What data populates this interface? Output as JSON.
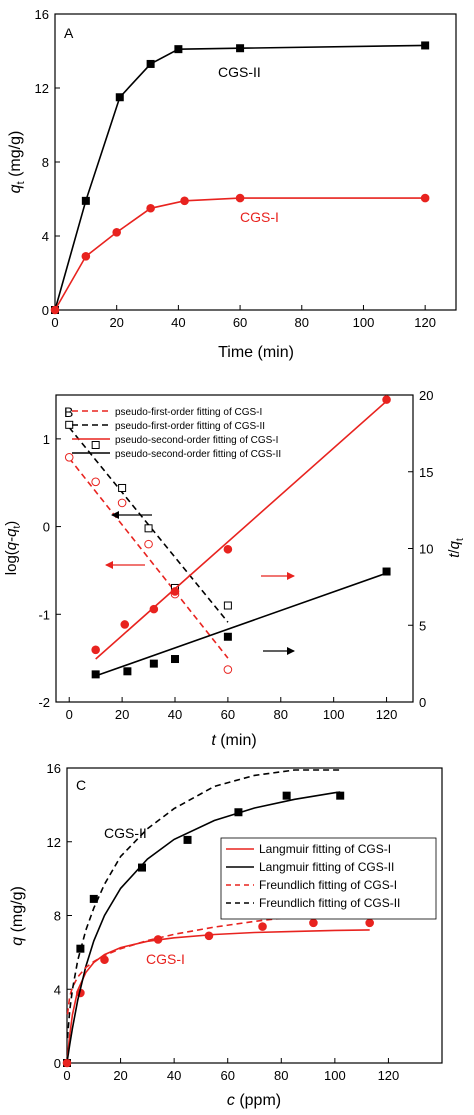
{
  "chart_data": [
    {
      "type": "line",
      "panel_label": "A",
      "xlabel": "Time (min)",
      "ylabel": {
        "main": "q",
        "sub": "t",
        "unit": " (mg/g)"
      },
      "xlim": [
        0,
        130
      ],
      "ylim": [
        0,
        16
      ],
      "xticks": [
        "0",
        "20",
        "40",
        "60",
        "80",
        "100",
        "120"
      ],
      "yticks": [
        "0",
        "4",
        "8",
        "12",
        "16"
      ],
      "series": [
        {
          "name": "CGS-II",
          "color": "#000000",
          "marker": "square",
          "x": [
            0,
            10,
            21,
            31,
            40,
            60,
            120
          ],
          "y": [
            0,
            5.9,
            11.5,
            13.3,
            14.1,
            14.15,
            14.3
          ]
        },
        {
          "name": "CGS-I",
          "color": "#e8231f",
          "marker": "circle",
          "x": [
            0,
            10,
            20,
            31,
            42,
            60,
            120
          ],
          "y": [
            0,
            2.9,
            4.2,
            5.5,
            5.9,
            6.05,
            6.05
          ]
        }
      ]
    },
    {
      "type": "line",
      "panel_label": "B",
      "xlabel": "t (min)",
      "ylabel_left": "log(q-qt)",
      "ylabel_right": "t/qt",
      "xlim": [
        -5,
        130
      ],
      "ylim_left": [
        -2,
        1.5
      ],
      "ylim_right": [
        0,
        20
      ],
      "xticks": [
        "0",
        "20",
        "40",
        "60",
        "80",
        "100",
        "120"
      ],
      "yticks_left": [
        "-2",
        "-1",
        "0",
        "1"
      ],
      "yticks_right": [
        "0",
        "5",
        "10",
        "15",
        "20"
      ],
      "legend": [
        "pseudo-first-order fitting of CGS-I",
        "pseudo-first-order fitting of CGS-II",
        "pseudo-second-order fitting of CGS-I",
        "pseudo-second-order fitting of CGS-II"
      ],
      "series": [
        {
          "name": "pseudo-first-order fitting of CGS-I",
          "axis": "left",
          "color": "#e8231f",
          "dash": true,
          "marker": "open-circle",
          "points_x": [
            0,
            10,
            20,
            30,
            40,
            60
          ],
          "points_y": [
            0.79,
            0.51,
            0.27,
            -0.2,
            -0.77,
            -1.63
          ],
          "line_x": [
            0,
            60
          ],
          "line_y": [
            0.78,
            -1.5
          ]
        },
        {
          "name": "pseudo-first-order fitting of CGS-II",
          "axis": "left",
          "color": "#000000",
          "dash": true,
          "marker": "open-square",
          "points_x": [
            0,
            10,
            20,
            30,
            40,
            60
          ],
          "points_y": [
            1.16,
            0.93,
            0.44,
            -0.02,
            -0.7,
            -0.9
          ],
          "line_x": [
            0,
            60
          ],
          "line_y": [
            1.13,
            -1.09
          ]
        },
        {
          "name": "pseudo-second-order fitting of CGS-I",
          "axis": "right",
          "color": "#e8231f",
          "dash": false,
          "marker": "circle",
          "points_x": [
            10,
            21,
            32,
            40,
            60,
            120
          ],
          "points_y": [
            3.4,
            5.05,
            6.05,
            7.2,
            9.95,
            19.7
          ],
          "line_x": [
            10,
            120
          ],
          "line_y": [
            2.8,
            19.6
          ]
        },
        {
          "name": "pseudo-second-order fitting of CGS-II",
          "axis": "right",
          "color": "#000000",
          "dash": false,
          "marker": "square",
          "points_x": [
            10,
            22,
            32,
            40,
            60,
            120
          ],
          "points_y": [
            1.8,
            2.0,
            2.5,
            2.8,
            4.25,
            8.5
          ],
          "line_x": [
            10,
            120
          ],
          "line_y": [
            1.7,
            8.4
          ]
        }
      ]
    },
    {
      "type": "scatter",
      "panel_label": "C",
      "xlabel": "c (ppm)",
      "ylabel": "q (mg/g)",
      "xlim": [
        0,
        140
      ],
      "ylim": [
        0,
        16
      ],
      "xticks": [
        "0",
        "20",
        "40",
        "60",
        "80",
        "100",
        "120"
      ],
      "yticks": [
        "0",
        "4",
        "8",
        "12",
        "16"
      ],
      "legend": [
        "Langmuir fitting of CGS-I",
        "Langmuir fitting of CGS-II",
        "Freundlich fitting of CGS-I",
        "Freundlich fitting of CGS-II"
      ],
      "annotations": [
        "CGS-II",
        "CGS-I"
      ],
      "series": [
        {
          "name": "CGS-II",
          "color": "#000000",
          "marker": "square",
          "x": [
            0,
            5,
            10,
            28,
            45,
            64,
            82,
            102
          ],
          "y": [
            0,
            6.2,
            8.9,
            10.6,
            12.1,
            13.6,
            14.5,
            14.5
          ]
        },
        {
          "name": "CGS-I",
          "color": "#e8231f",
          "marker": "circle",
          "x": [
            0,
            5,
            14,
            34,
            53,
            73,
            92,
            113
          ],
          "y": [
            0,
            3.8,
            5.6,
            6.7,
            6.9,
            7.4,
            7.6,
            7.6
          ]
        },
        {
          "name": "Langmuir fitting of CGS-I",
          "color": "#e8231f",
          "dash": false,
          "x": [
            0.2,
            1,
            2,
            4,
            7,
            10,
            14,
            20,
            30,
            40,
            55,
            70,
            85,
            100,
            113
          ],
          "y": [
            0.33,
            1.5,
            2.61,
            3.94,
            4.91,
            5.45,
            5.88,
            6.26,
            6.6,
            6.79,
            6.97,
            7.08,
            7.14,
            7.19,
            7.22
          ]
        },
        {
          "name": "Langmuir fitting of CGS-II",
          "color": "#000000",
          "dash": false,
          "x": [
            0.2,
            1,
            2,
            4,
            7,
            10,
            14,
            20,
            30,
            40,
            55,
            70,
            85,
            100,
            102
          ],
          "y": [
            0.2,
            0.98,
            1.87,
            3.4,
            5.23,
            6.62,
            8.0,
            9.47,
            11.06,
            12.13,
            13.15,
            13.83,
            14.3,
            14.66,
            14.7
          ]
        },
        {
          "name": "Freundlich fitting of CGS-I",
          "color": "#e8231f",
          "dash": true,
          "x": [
            0.2,
            1,
            2,
            4,
            7,
            10,
            14,
            20,
            30,
            40,
            55,
            70,
            85,
            100,
            113
          ],
          "y": [
            2.64,
            3.6,
            4.1,
            4.66,
            5.18,
            5.5,
            5.83,
            6.2,
            6.64,
            6.98,
            7.37,
            7.68,
            7.94,
            8.16,
            8.34
          ]
        },
        {
          "name": "Freundlich fitting of CGS-II",
          "color": "#000000",
          "dash": true,
          "x": [
            0.2,
            1,
            2,
            4,
            7,
            10,
            14,
            20,
            30,
            40,
            55,
            70,
            85,
            100,
            102
          ],
          "y": [
            1.35,
            2.84,
            3.97,
            5.56,
            7.2,
            8.4,
            9.7,
            11.2,
            12.7,
            13.8,
            15.0,
            15.6,
            16.0,
            16.0,
            16.0
          ]
        }
      ]
    }
  ]
}
